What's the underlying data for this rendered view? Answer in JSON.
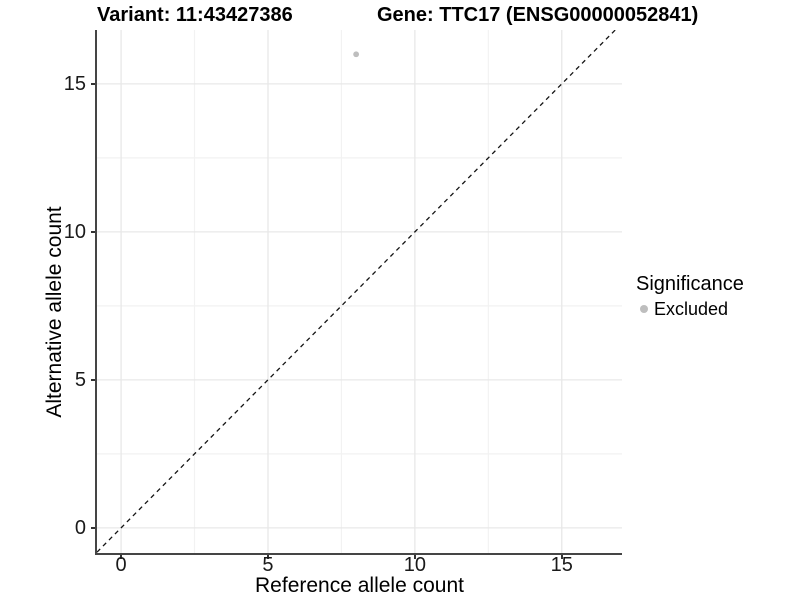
{
  "header": {
    "variant_title": "Variant: 11:43427386",
    "gene_title": "Gene: TTC17 (ENSG00000052841)"
  },
  "chart_data": {
    "type": "scatter",
    "title_left": "Variant: 11:43427386",
    "title_right": "Gene: TTC17 (ENSG00000052841)",
    "xlabel": "Reference allele count",
    "ylabel": "Alternative allele count",
    "xlim": [
      -0.82,
      17.05
    ],
    "ylim": [
      -0.85,
      16.82
    ],
    "x_ticks": [
      0,
      5,
      10,
      15
    ],
    "y_ticks": [
      0,
      5,
      10,
      15
    ],
    "x_minor_ticks": [
      2.5,
      7.5,
      12.5
    ],
    "y_minor_ticks": [
      2.5,
      7.5,
      12.5
    ],
    "grid": "major+minor",
    "legend_position": "right",
    "reference_line": {
      "type": "identity",
      "style": "dashed"
    },
    "series": [
      {
        "name": "Excluded",
        "color": "#bebebe",
        "points": [
          {
            "x": 8,
            "y": 16
          }
        ]
      }
    ]
  },
  "legend": {
    "title": "Significance",
    "entries": [
      {
        "label": "Excluded",
        "color": "#bebebe"
      }
    ]
  },
  "colors": {
    "background": "#ffffff",
    "grid_major": "#e8e8e8",
    "grid_minor": "#f2f2f2",
    "axis_line": "#454545",
    "tick_mark": "#333333",
    "dashed_line": "#141414",
    "text": "#000000"
  }
}
